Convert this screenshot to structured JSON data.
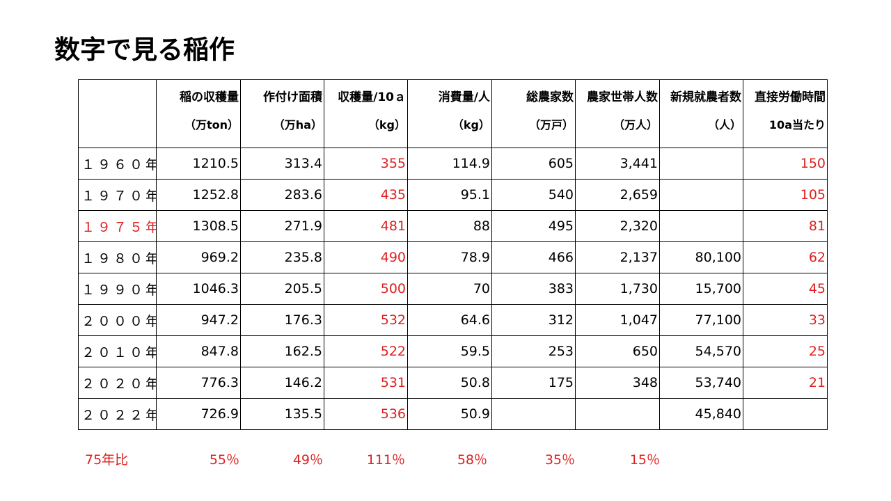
{
  "title": "数字で見る稲作",
  "headers": [
    {
      "line1": "",
      "line2": ""
    },
    {
      "line1": "稲の収穫量",
      "line2": "（万ton）"
    },
    {
      "line1": "作付け面積",
      "line2": "（万ha）"
    },
    {
      "line1": "収穫量/10ａ",
      "line2": "（kg）"
    },
    {
      "line1": "消費量/人",
      "line2": "（kg）"
    },
    {
      "line1": "総農家数",
      "line2": "（万戸）"
    },
    {
      "line1": "農家世帯人数",
      "line2": "（万人）"
    },
    {
      "line1": "新規就農者数",
      "line2": "（人）"
    },
    {
      "line1": "直接労働時間",
      "line2": "10a当たり"
    }
  ],
  "rows": [
    {
      "year": "１９６０年",
      "highlight": false,
      "values": [
        "1210.5",
        "313.4",
        "355",
        "114.9",
        "605",
        "3,441",
        "",
        "150"
      ]
    },
    {
      "year": "１９７０年",
      "highlight": false,
      "values": [
        "1252.8",
        "283.6",
        "435",
        "95.1",
        "540",
        "2,659",
        "",
        "105"
      ]
    },
    {
      "year": "１９７５年",
      "highlight": true,
      "values": [
        "1308.5",
        "271.9",
        "481",
        "88",
        "495",
        "2,320",
        "",
        "81"
      ]
    },
    {
      "year": "１９８０年",
      "highlight": false,
      "values": [
        "969.2",
        "235.8",
        "490",
        "78.9",
        "466",
        "2,137",
        "80,100",
        "62"
      ]
    },
    {
      "year": "１９９０年",
      "highlight": false,
      "values": [
        "1046.3",
        "205.5",
        "500",
        "70",
        "383",
        "1,730",
        "15,700",
        "45"
      ]
    },
    {
      "year": "２０００年",
      "highlight": false,
      "values": [
        "947.2",
        "176.3",
        "532",
        "64.6",
        "312",
        "1,047",
        "77,100",
        "33"
      ]
    },
    {
      "year": "２０１０年",
      "highlight": false,
      "values": [
        "847.8",
        "162.5",
        "522",
        "59.5",
        "253",
        "650",
        "54,570",
        "25"
      ]
    },
    {
      "year": "２０２０年",
      "highlight": false,
      "values": [
        "776.3",
        "146.2",
        "531",
        "50.8",
        "175",
        "348",
        "53,740",
        "21"
      ]
    },
    {
      "year": "２０２２年",
      "highlight": false,
      "values": [
        "726.9",
        "135.5",
        "536",
        "50.9",
        "",
        "",
        "45,840",
        ""
      ]
    }
  ],
  "summary": {
    "label": "75年比",
    "values": [
      "55％",
      "49％",
      "111％",
      "58％",
      "35％",
      "15％"
    ]
  },
  "colors": {
    "highlight": "#e01e1e",
    "text": "#000000",
    "border": "#000000"
  }
}
